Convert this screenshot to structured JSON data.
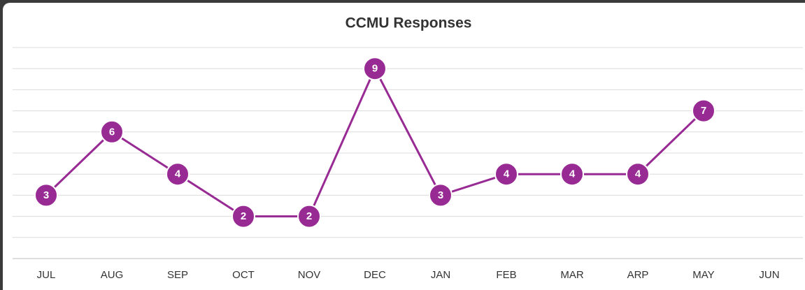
{
  "chart_data": {
    "type": "line",
    "title": "CCMU Responses",
    "categories": [
      "JUL",
      "AUG",
      "SEP",
      "OCT",
      "NOV",
      "DEC",
      "JAN",
      "FEB",
      "MAR",
      "ARP",
      "MAY",
      "JUN"
    ],
    "values": [
      3,
      6,
      4,
      2,
      2,
      9,
      3,
      4,
      4,
      4,
      7,
      null
    ],
    "color": "#982a94",
    "ylim": [
      0,
      10
    ],
    "yticks": [
      0,
      1,
      2,
      3,
      4,
      5,
      6,
      7,
      8,
      9,
      10
    ],
    "grid": true
  }
}
